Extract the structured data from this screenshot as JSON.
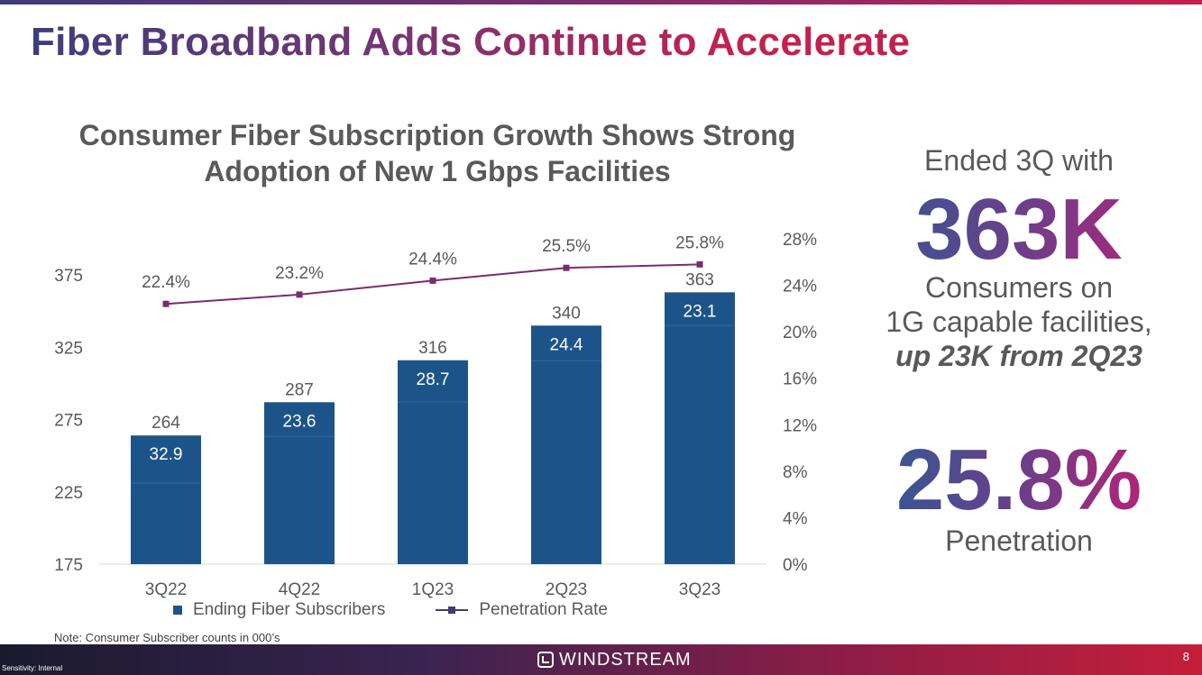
{
  "page": {
    "title": "Fiber Broadband Adds Continue to Accelerate",
    "note": "Note: Consumer Subscriber counts in 000’s",
    "sensitivity": "Sensitivity: Internal",
    "page_number": "8",
    "logo_text": "WINDSTREAM"
  },
  "side_panel": {
    "ended_line": "Ended 3Q with",
    "big_number": "363K",
    "consumers_line1": "Consumers on",
    "consumers_line2": "1G capable facilities,",
    "consumers_line3": "up 23K from 2Q23",
    "penetration_number": "25.8%",
    "penetration_label": "Penetration"
  },
  "chart_data": {
    "type": "bar",
    "title_line1": "Consumer Fiber Subscription Growth Shows Strong",
    "title_line2": "Adoption of New 1 Gbps Facilities",
    "categories": [
      "3Q22",
      "4Q22",
      "1Q23",
      "2Q23",
      "3Q23"
    ],
    "series": [
      {
        "name": "Ending Fiber Subscribers",
        "type": "bar",
        "axis": "left",
        "values": [
          264,
          287,
          316,
          340,
          363
        ],
        "labels": [
          "264",
          "287",
          "316",
          "340",
          "363"
        ],
        "adds": [
          32.9,
          23.6,
          28.7,
          24.4,
          23.1
        ],
        "adds_labels": [
          "32.9",
          "23.6",
          "28.7",
          "24.4",
          "23.1"
        ]
      },
      {
        "name": "Penetration Rate",
        "type": "line",
        "axis": "right",
        "values": [
          22.4,
          23.2,
          24.4,
          25.5,
          25.8
        ],
        "labels": [
          "22.4%",
          "23.2%",
          "24.4%",
          "25.5%",
          "25.8%"
        ]
      }
    ],
    "y_left": {
      "min": 175,
      "max": 400,
      "ticks": [
        175,
        225,
        275,
        325,
        375
      ],
      "tick_labels": [
        "175",
        "225",
        "275",
        "325",
        "375"
      ]
    },
    "y_right": {
      "min": 0,
      "max": 28,
      "ticks": [
        0,
        4,
        8,
        12,
        16,
        20,
        24,
        28
      ],
      "tick_labels": [
        "0%",
        "4%",
        "8%",
        "12%",
        "16%",
        "20%",
        "24%",
        "28%"
      ]
    },
    "legend_position": "bottom",
    "grid": false,
    "colors": {
      "bar": "#1c548a",
      "line": "#7a2c6e",
      "text": "#595959"
    }
  }
}
